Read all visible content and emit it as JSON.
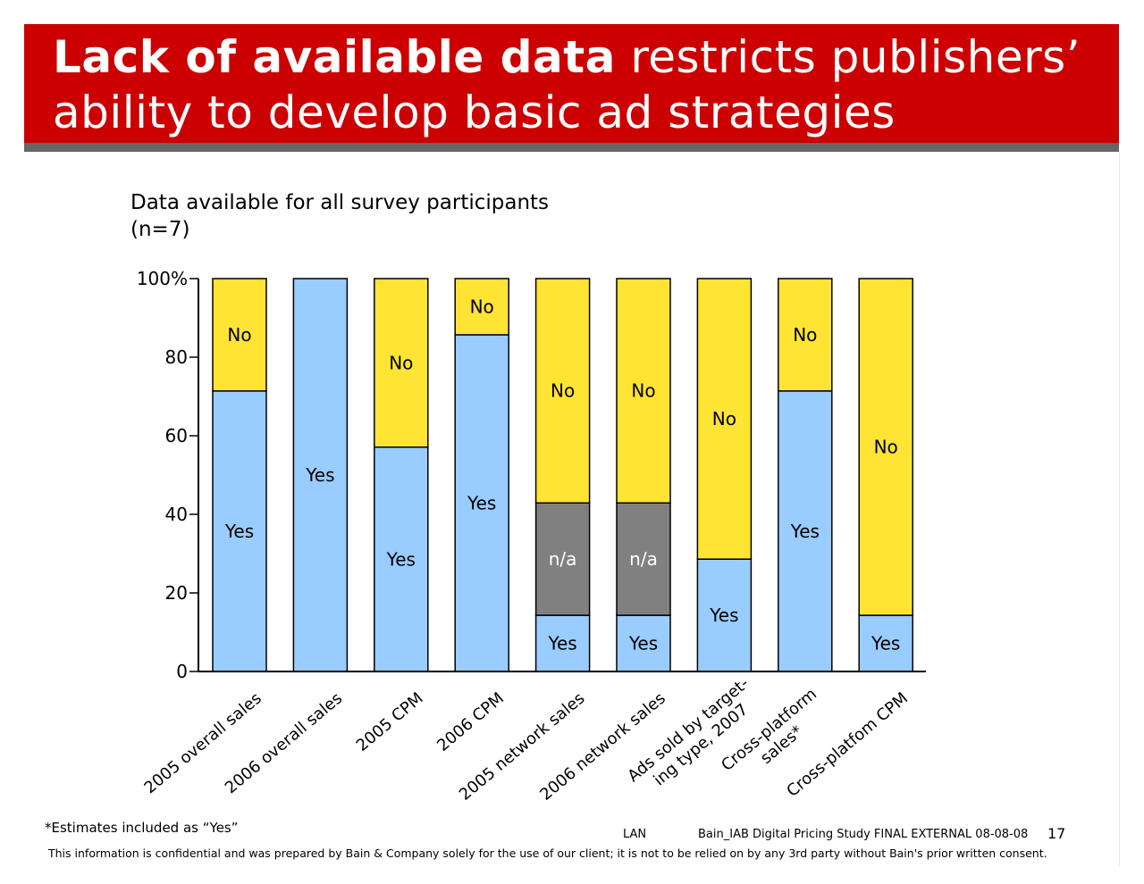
{
  "header": {
    "title_bold": "Lack of available data",
    "title_rest_line1": " restricts publishers’",
    "title_line2": "ability to develop basic ad strategies"
  },
  "subtitle": {
    "line1": "Data available for all survey participants",
    "line2": "(n=7)"
  },
  "chart_data": {
    "type": "bar",
    "stacked": true,
    "categories": [
      "2005 overall sales",
      "2006 overall sales",
      "2005 CPM",
      "2006 CPM",
      "2005 network sales",
      "2006 network sales",
      "Ads sold by target-ing type, 2007",
      "Cross-platform sales*",
      "Cross-platfom CPM"
    ],
    "category_label_lines": [
      [
        "2005 overall sales"
      ],
      [
        "2006 overall sales"
      ],
      [
        "2005 CPM"
      ],
      [
        "2006 CPM"
      ],
      [
        "2005 network sales"
      ],
      [
        "2006 network sales"
      ],
      [
        "Ads sold by target-",
        "ing type, 2007"
      ],
      [
        "Cross-platform",
        "sales*"
      ],
      [
        "Cross-platfom CPM"
      ]
    ],
    "series": [
      {
        "name": "Yes",
        "color": "#99ccff",
        "values": [
          71.4,
          100,
          57.1,
          85.7,
          14.3,
          14.3,
          28.6,
          71.4,
          14.3
        ]
      },
      {
        "name": "n/a",
        "color": "#808080",
        "values": [
          0,
          0,
          0,
          0,
          28.6,
          28.6,
          0,
          0,
          0
        ]
      },
      {
        "name": "No",
        "color": "#ffe433",
        "values": [
          28.6,
          0,
          42.9,
          14.3,
          57.1,
          57.1,
          71.4,
          28.6,
          85.7
        ]
      }
    ],
    "segment_label_colors": {
      "Yes": "#000000",
      "n/a": "#ffffff",
      "No": "#000000"
    },
    "ylim": [
      0,
      100
    ],
    "yticks": [
      0,
      20,
      40,
      60,
      80,
      100
    ],
    "ytick_labels": [
      "0",
      "20",
      "40",
      "60",
      "80",
      "100%"
    ],
    "legend": "none (labels inside bars)",
    "grid": false
  },
  "footer": {
    "footnote": "*Estimates included as “Yes”",
    "lan": "LAN",
    "doc": "Bain_IAB Digital Pricing Study FINAL EXTERNAL 08-08-08",
    "page": "17",
    "disclaimer": "This information is confidential and was prepared by Bain & Company solely for the use of our client; it is not to be relied on by any 3rd party without Bain's prior written consent."
  }
}
